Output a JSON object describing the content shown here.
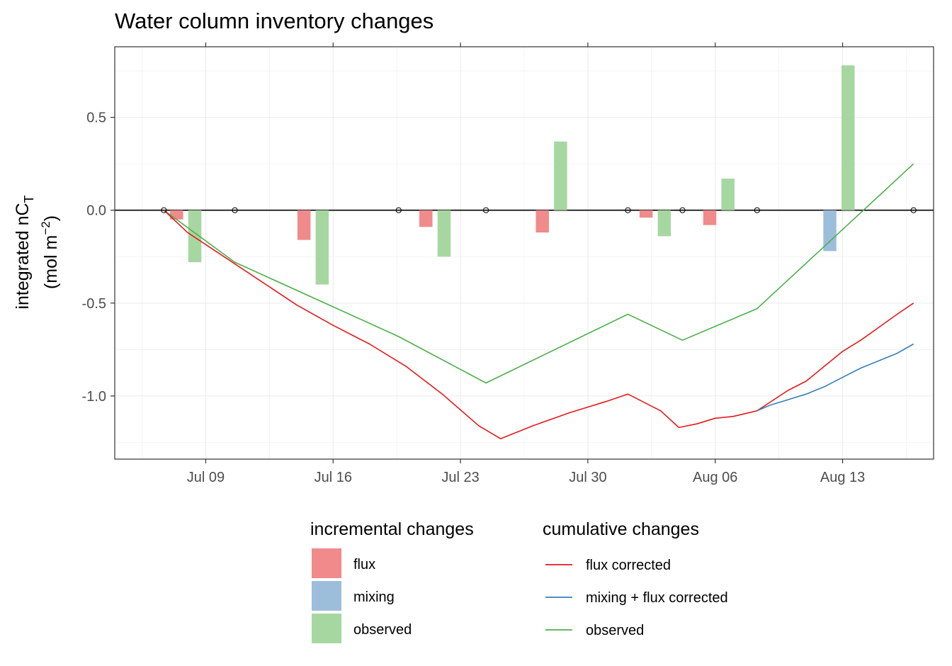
{
  "chart_data": {
    "type": "bar+line",
    "title": "Water column inventory changes",
    "ylabel_line1": "integrated nC",
    "ylabel_sub": "T",
    "ylabel_line2_pre": "(mol m",
    "ylabel_sup": "−2",
    "ylabel_line2_post": ")",
    "xlabel": "",
    "x_range": [
      "2021-07-04",
      "2021-08-18"
    ],
    "ylim": [
      -1.34,
      0.88
    ],
    "grid": true,
    "x_ticks": [
      {
        "date": "2021-07-09",
        "label": "Jul 09"
      },
      {
        "date": "2021-07-16",
        "label": "Jul 16"
      },
      {
        "date": "2021-07-23",
        "label": "Jul 23"
      },
      {
        "date": "2021-07-30",
        "label": "Jul 30"
      },
      {
        "date": "2021-08-06",
        "label": "Aug 06"
      },
      {
        "date": "2021-08-13",
        "label": "Aug 13"
      }
    ],
    "y_ticks": [
      {
        "value": 0.5,
        "label": "0.5"
      },
      {
        "value": 0.0,
        "label": "0.0"
      },
      {
        "value": -0.5,
        "label": "-0.5"
      },
      {
        "value": -1.0,
        "label": "-1.0"
      }
    ],
    "colors": {
      "flux_bar": "#F08A8B",
      "mixing_bar": "#9DBEDB",
      "observed_bar": "#A7D7A1",
      "flux_line": "#E41A1C",
      "mixing_line": "#377EB8",
      "observed_line": "#4DAF4A"
    },
    "incremental_changes": [
      {
        "series": "flux",
        "date": "2021-07-07.4",
        "value": -0.05
      },
      {
        "series": "observed",
        "date": "2021-07-08.4",
        "value": -0.28
      },
      {
        "series": "flux",
        "date": "2021-07-14.4",
        "value": -0.16
      },
      {
        "series": "observed",
        "date": "2021-07-15.4",
        "value": -0.4
      },
      {
        "series": "flux",
        "date": "2021-07-21.1",
        "value": -0.09
      },
      {
        "series": "observed",
        "date": "2021-07-22.1",
        "value": -0.25
      },
      {
        "series": "flux",
        "date": "2021-07-27.5",
        "value": -0.12
      },
      {
        "series": "observed",
        "date": "2021-07-28.5",
        "value": 0.37
      },
      {
        "series": "flux",
        "date": "2021-08-02.2",
        "value": -0.04
      },
      {
        "series": "observed",
        "date": "2021-08-03.2",
        "value": -0.14
      },
      {
        "series": "flux",
        "date": "2021-08-05.7",
        "value": -0.08
      },
      {
        "series": "observed",
        "date": "2021-08-06.7",
        "value": 0.17
      },
      {
        "series": "mixing",
        "date": "2021-08-12.3",
        "value": -0.22
      },
      {
        "series": "observed",
        "date": "2021-08-13.3",
        "value": 0.78
      }
    ],
    "sample_points": [
      {
        "date": "2021-07-06.7",
        "value": 0.0
      },
      {
        "date": "2021-07-10.6",
        "value": 0.0
      },
      {
        "date": "2021-07-19.6",
        "value": 0.0
      },
      {
        "date": "2021-07-24.4",
        "value": 0.0
      },
      {
        "date": "2021-08-01.2",
        "value": 0.0
      },
      {
        "date": "2021-08-04.2",
        "value": 0.0
      },
      {
        "date": "2021-08-08.3",
        "value": 0.0
      },
      {
        "date": "2021-08-16.9",
        "value": 0.0
      }
    ],
    "cumulative_changes": {
      "observed": [
        [
          "2021-07-06.7",
          0.0
        ],
        [
          "2021-07-10.6",
          -0.28
        ],
        [
          "2021-07-19.6",
          -0.68
        ],
        [
          "2021-07-24.4",
          -0.93
        ],
        [
          "2021-08-01.2",
          -0.56
        ],
        [
          "2021-08-04.2",
          -0.7
        ],
        [
          "2021-08-08.3",
          -0.53
        ],
        [
          "2021-08-16.9",
          0.25
        ]
      ],
      "flux_corrected": [
        [
          "2021-07-06.7",
          0.0
        ],
        [
          "2021-07-08.0",
          -0.12
        ],
        [
          "2021-07-10.0",
          -0.25
        ],
        [
          "2021-07-12.0",
          -0.38
        ],
        [
          "2021-07-14.0",
          -0.51
        ],
        [
          "2021-07-16.0",
          -0.62
        ],
        [
          "2021-07-18.0",
          -0.72
        ],
        [
          "2021-07-20.0",
          -0.84
        ],
        [
          "2021-07-22.0",
          -0.99
        ],
        [
          "2021-07-24.0",
          -1.16
        ],
        [
          "2021-07-25.2",
          -1.23
        ],
        [
          "2021-07-27.0",
          -1.16
        ],
        [
          "2021-07-29.0",
          -1.09
        ],
        [
          "2021-07-31.0",
          -1.03
        ],
        [
          "2021-08-01.2",
          -0.99
        ],
        [
          "2021-08-03.0",
          -1.08
        ],
        [
          "2021-08-04.0",
          -1.17
        ],
        [
          "2021-08-05.0",
          -1.15
        ],
        [
          "2021-08-06.0",
          -1.12
        ],
        [
          "2021-08-07.0",
          -1.11
        ],
        [
          "2021-08-08.3",
          -1.08
        ],
        [
          "2021-08-10.0",
          -0.97
        ],
        [
          "2021-08-11.0",
          -0.92
        ],
        [
          "2021-08-12.0",
          -0.84
        ],
        [
          "2021-08-13.0",
          -0.76
        ],
        [
          "2021-08-14.0",
          -0.7
        ],
        [
          "2021-08-15.0",
          -0.63
        ],
        [
          "2021-08-16.0",
          -0.56
        ],
        [
          "2021-08-16.9",
          -0.5
        ]
      ],
      "mixing_flux_corrected": [
        [
          "2021-08-08.3",
          -1.08
        ],
        [
          "2021-08-09.0",
          -1.05
        ],
        [
          "2021-08-10.0",
          -1.02
        ],
        [
          "2021-08-11.0",
          -0.99
        ],
        [
          "2021-08-12.0",
          -0.95
        ],
        [
          "2021-08-13.0",
          -0.9
        ],
        [
          "2021-08-14.0",
          -0.85
        ],
        [
          "2021-08-15.0",
          -0.81
        ],
        [
          "2021-08-16.0",
          -0.77
        ],
        [
          "2021-08-16.9",
          -0.72
        ]
      ]
    },
    "legend_incremental": {
      "title": "incremental changes",
      "items": [
        {
          "label": "flux",
          "color_key": "flux_bar"
        },
        {
          "label": "mixing",
          "color_key": "mixing_bar"
        },
        {
          "label": "observed",
          "color_key": "observed_bar"
        }
      ]
    },
    "legend_cumulative": {
      "title": "cumulative changes",
      "items": [
        {
          "label": "flux corrected",
          "color_key": "flux_line"
        },
        {
          "label": "mixing + flux corrected",
          "color_key": "mixing_line"
        },
        {
          "label": "observed",
          "color_key": "observed_line"
        }
      ]
    }
  }
}
